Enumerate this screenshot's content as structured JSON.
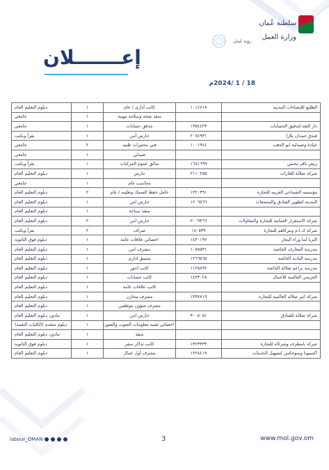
{
  "header": {
    "ministry_name": "سلطنة عُمان\nوزارة العمل",
    "vision_text": "رؤية عُمان",
    "title": "إعـــــــلان",
    "date": "18 / 1 /2024م"
  },
  "rows": [
    {
      "company": "الطليع للإنشاءات المدنية",
      "cr": "١٠١٤٧١٨",
      "job": "كاتب اداري / عام",
      "count": "١",
      "qual": "دبلوم التعليم العام"
    },
    {
      "company": "",
      "cr": "",
      "job": "منفذ صحة وسلامة مهنية",
      "count": "١",
      "qual": "جامعي"
    },
    {
      "company": "دار الثقة لتدقيق الحسابات",
      "cr": "١٣٥٤٤٢٣",
      "job": "مدقق حسابات",
      "count": "١",
      "qual": "جامعي"
    },
    {
      "company": "فندق حمدان بلازا",
      "cr": "٢٠٧٤٩٣١",
      "job": "حارس أمن",
      "count": "١",
      "qual": "يقرأ ويكتب"
    },
    {
      "company": "عيادة وصيدلية ابو الذهب",
      "cr": "١٠٠١٩٤٤",
      "job": "فني مختبرات طبيه",
      "count": "٢",
      "qual": "جامعي"
    },
    {
      "company": "",
      "cr": "",
      "job": "صيدلي",
      "count": "١",
      "qual": "جامعي"
    },
    {
      "company": "زيش باقر محمي",
      "cr": "١٦٨١٦٩٩",
      "job": "سائق عموم المركبات",
      "count": "١",
      "qual": "يقرأ ويكتب"
    },
    {
      "company": "شركة صلالة للغازات",
      "cr": "٢١١٠٢٥٥",
      "job": "حارس",
      "count": "١",
      "qual": "دبلوم التعليم العام"
    },
    {
      "company": "",
      "cr": "",
      "job": "محاسب عام",
      "count": "١",
      "qual": "جامعي"
    },
    {
      "company": "مؤسسه الشماخي العربيه للتجاره",
      "cr": "١٢٢٠٣٩١",
      "job": "عامل حفظ السمك وتعليبه / عام",
      "count": "٢",
      "qual": "دبلوم التعليم العام"
    },
    {
      "company": "المدينة لتطوير الفنادق والمنتجعات",
      "cr": "١٢٠٦٥٦٦",
      "job": "حارس امن",
      "count": "١",
      "qual": "دبلوم التعليم العام"
    },
    {
      "company": "",
      "cr": "",
      "job": "منقذ سباحة",
      "count": "١",
      "qual": "دبلوم التعليم العام"
    },
    {
      "company": "شركة الاستقرار العمانية للتجارة والمقاولات",
      "cr": "٢٠٠٩٣٦٦",
      "job": "حارس امن",
      "count": "٢",
      "qual": "دبلوم التعليم العام"
    },
    {
      "company": "شركة ك.ا.م ونتركاهم للتجارة",
      "cr": "١٨٠٥٣٩",
      "job": "صراف",
      "count": "٢",
      "qual": "يقرأ ويكتب"
    },
    {
      "company": "الثريا لما وراء البحار",
      "cr": "١٤٣٠١٩٢",
      "job": "اخصائي علاقات عامة",
      "count": "١",
      "qual": "دبلوم فوق الثانوية"
    },
    {
      "company": "مدرسة المعارف الخاصة",
      "cr": "١٠٧٥٥٣١",
      "job": "مشرف امن",
      "count": "١",
      "qual": "دبلوم التعليم العام"
    },
    {
      "company": "مدرسة البادية الخاصة",
      "cr": "١٢٦٦٥٦٥",
      "job": "منسق اداري",
      "count": "١",
      "qual": "دبلوم التعليم العام"
    },
    {
      "company": "مدرسة براعم صلالة الخاصة",
      "cr": "١١٢٥٨٩٢",
      "job": "كاتب اجور",
      "count": "١",
      "qual": "دبلوم التعليم العام"
    },
    {
      "company": "العزيمي العالمية للأعمال",
      "cr": "١٤٢٣٠٢٨",
      "job": "كاتب حسابات",
      "count": "١",
      "qual": "دبلوم التعليم العام"
    },
    {
      "company": "",
      "cr": "",
      "job": "كاتب علاقات عامة",
      "count": "١",
      "qual": "دبلوم التعليم العام"
    },
    {
      "company": "شركة اثير صلاله العالميه للتجاره",
      "cr": "١٣٣٨٧١٩",
      "job": "مشرف مخازن",
      "count": "١",
      "qual": "دبلوم التعليم العام"
    },
    {
      "company": "",
      "cr": "",
      "job": "مشرف شؤون موظفين",
      "count": "١",
      "qual": "دبلوم التعليم العام"
    },
    {
      "company": "شركة صلالة للفنادق",
      "cr": "٣٠٠٥٠٥١",
      "job": "حارس امن",
      "count": "١",
      "qual": "مادون دبلوم التعليم العام"
    },
    {
      "company": "",
      "cr": "",
      "job": "اخصائي تقنية معلومات الصوت والصورة",
      "count": "١",
      "qual": "دبلوم متقدم (الكليات التقنية)"
    },
    {
      "company": "",
      "cr": "",
      "job": "منقذ",
      "count": "١",
      "qual": "مادون دبلوم التعليم العام"
    },
    {
      "company": "شركة بامطرف وشركاه للتجارة",
      "cr": "١٣٢٣٣٣٣",
      "job": "كاتب تذاكر سفر",
      "count": "١",
      "qual": "دبلوم فوق الثانوية"
    },
    {
      "company": "أكسيونا وسوجكس لتسهيل الخدمات",
      "cr": "١٢٢٨٤١٩",
      "job": "مشرف أول عمال",
      "count": "١",
      "qual": "دبلوم التعليم العام"
    }
  ],
  "footer": {
    "handle": "labour_OMAN",
    "page_number": "3",
    "website": "www.mol.gov.om"
  }
}
